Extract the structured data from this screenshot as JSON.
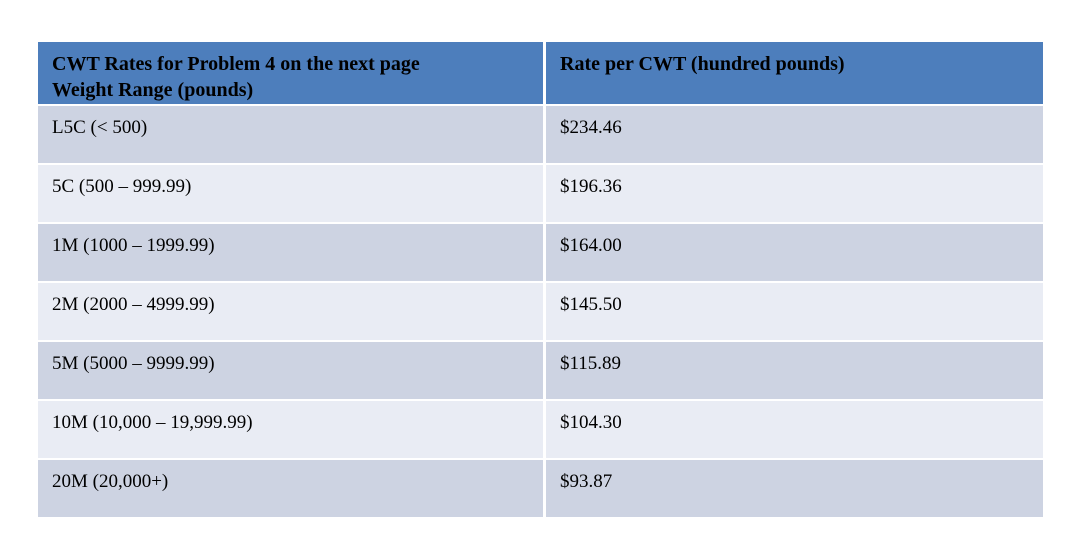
{
  "table": {
    "title_context": "CWT rate table",
    "header": {
      "weight_col_line1": "CWT Rates for Problem 4 on the next page",
      "weight_col_line2": "Weight Range (pounds)",
      "rate_col": "Rate per CWT (hundred pounds)"
    },
    "rows": [
      {
        "weight_range": "L5C (< 500)",
        "rate": "$234.46"
      },
      {
        "weight_range": "5C (500 – 999.99)",
        "rate": "$196.36"
      },
      {
        "weight_range": "1M (1000 – 1999.99)",
        "rate": "$164.00"
      },
      {
        "weight_range": "2M (2000 – 4999.99)",
        "rate": "$145.50"
      },
      {
        "weight_range": "5M (5000 – 9999.99)",
        "rate": "$115.89"
      },
      {
        "weight_range": "10M (10,000 – 19,999.99)",
        "rate": "$104.30"
      },
      {
        "weight_range": "20M (20,000+)",
        "rate": "$93.87"
      }
    ],
    "colors": {
      "header_bg": "#4d7ebc",
      "row_band_dark": "#cdd3e2",
      "row_band_light": "#e9ecf4",
      "text": "#000000",
      "page_bg": "#ffffff"
    }
  }
}
